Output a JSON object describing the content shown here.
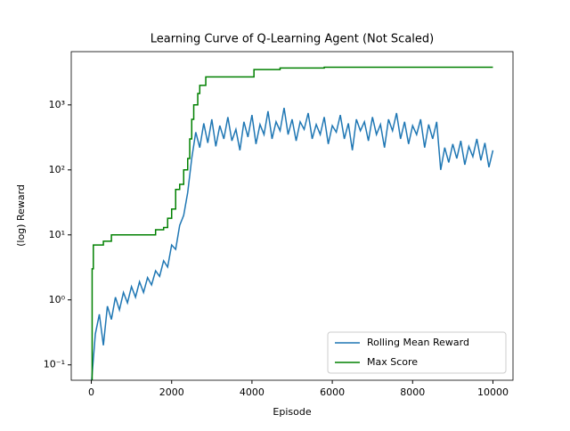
{
  "chart_data": {
    "type": "line",
    "title": "Learning Curve of Q-Learning Agent (Not Scaled)",
    "xlabel": "Episode",
    "ylabel": "(log) Reward",
    "log_y": true,
    "legend": "lower right",
    "xlim": [
      -500,
      10500
    ],
    "xticks": [
      0,
      2000,
      4000,
      6000,
      8000,
      10000
    ],
    "ylim": [
      0.058,
      6600
    ],
    "yticks": [
      {
        "value": 0.1,
        "label": "10⁻¹"
      },
      {
        "value": 1,
        "label": "10⁰"
      },
      {
        "value": 10,
        "label": "10¹"
      },
      {
        "value": 100,
        "label": "10²"
      },
      {
        "value": 1000,
        "label": "10³"
      }
    ],
    "series": [
      {
        "name": "Rolling Mean Reward",
        "color": "#1f77b4",
        "step": false,
        "x": [
          0,
          100,
          200,
          300,
          400,
          500,
          600,
          700,
          800,
          900,
          1000,
          1100,
          1200,
          1300,
          1400,
          1500,
          1600,
          1700,
          1800,
          1900,
          2000,
          2100,
          2200,
          2300,
          2400,
          2500,
          2600,
          2700,
          2800,
          2900,
          3000,
          3100,
          3200,
          3300,
          3400,
          3500,
          3600,
          3700,
          3800,
          3900,
          4000,
          4100,
          4200,
          4300,
          4400,
          4500,
          4600,
          4700,
          4800,
          4900,
          5000,
          5100,
          5200,
          5300,
          5400,
          5500,
          5600,
          5700,
          5800,
          5900,
          6000,
          6100,
          6200,
          6300,
          6400,
          6500,
          6600,
          6700,
          6800,
          6900,
          7000,
          7100,
          7200,
          7300,
          7400,
          7500,
          7600,
          7700,
          7800,
          7900,
          8000,
          8100,
          8200,
          8300,
          8400,
          8500,
          8600,
          8700,
          8800,
          8900,
          9000,
          9100,
          9200,
          9300,
          9400,
          9500,
          9600,
          9700,
          9800,
          9900,
          10000
        ],
        "values": [
          0.05,
          0.3,
          0.6,
          0.2,
          0.8,
          0.5,
          1.1,
          0.7,
          1.3,
          0.9,
          1.6,
          1.1,
          1.9,
          1.3,
          2.2,
          1.7,
          2.8,
          2.3,
          4,
          3.2,
          7,
          6,
          14,
          20,
          45,
          150,
          380,
          220,
          520,
          260,
          600,
          230,
          480,
          300,
          650,
          280,
          420,
          200,
          550,
          320,
          700,
          250,
          500,
          350,
          800,
          300,
          550,
          400,
          900,
          350,
          600,
          280,
          550,
          420,
          750,
          300,
          500,
          350,
          650,
          250,
          480,
          380,
          700,
          300,
          520,
          200,
          600,
          400,
          550,
          280,
          650,
          350,
          500,
          220,
          600,
          400,
          750,
          300,
          550,
          250,
          480,
          350,
          600,
          220,
          500,
          300,
          550,
          100,
          220,
          130,
          250,
          150,
          280,
          120,
          230,
          160,
          300,
          140,
          260,
          110,
          200
        ]
      },
      {
        "name": "Max Score",
        "color": "#008000",
        "step": true,
        "x": [
          0,
          20,
          50,
          300,
          500,
          1600,
          1800,
          1900,
          2000,
          2100,
          2200,
          2300,
          2400,
          2450,
          2500,
          2550,
          2650,
          2700,
          2850,
          4050,
          4700,
          5800,
          10000
        ],
        "values": [
          0.05,
          3,
          7,
          8,
          10,
          12,
          13,
          18,
          25,
          50,
          60,
          100,
          150,
          300,
          600,
          1000,
          1500,
          2000,
          2700,
          3500,
          3700,
          3800,
          3800
        ]
      }
    ]
  }
}
